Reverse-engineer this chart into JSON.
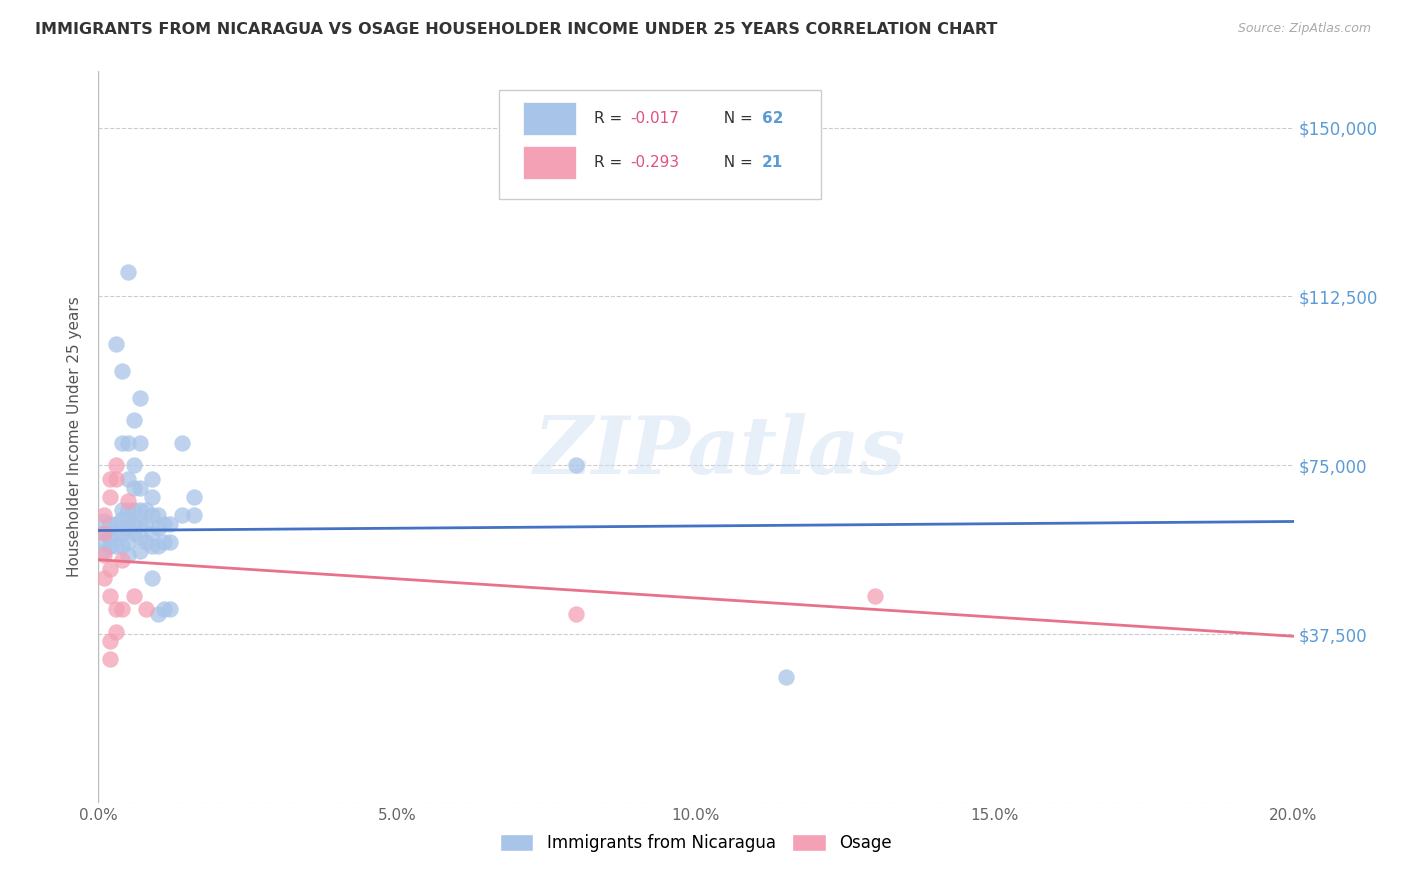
{
  "title": "IMMIGRANTS FROM NICARAGUA VS OSAGE HOUSEHOLDER INCOME UNDER 25 YEARS CORRELATION CHART",
  "source": "Source: ZipAtlas.com",
  "ylabel": "Householder Income Under 25 years",
  "xlim": [
    0.0,
    0.2
  ],
  "ylim": [
    0,
    162500
  ],
  "yticks": [
    0,
    37500,
    75000,
    112500,
    150000
  ],
  "ytick_labels": [
    "",
    "$37,500",
    "$75,000",
    "$112,500",
    "$150,000"
  ],
  "xticks": [
    0.0,
    0.05,
    0.1,
    0.15,
    0.2
  ],
  "xtick_labels": [
    "0.0%",
    "5.0%",
    "10.0%",
    "15.0%",
    "20.0%"
  ],
  "color_blue": "#a8c4e8",
  "color_pink": "#f4a0b5",
  "color_line_blue": "#4472c4",
  "color_line_pink": "#e8728a",
  "color_axis_labels": "#5b9bd5",
  "watermark": "ZIPatlas",
  "blue_line_x": [
    0.0,
    0.2
  ],
  "blue_line_y": [
    60500,
    62500
  ],
  "pink_line_x": [
    0.0,
    0.2
  ],
  "pink_line_y": [
    54000,
    37000
  ],
  "blue_scatter": [
    [
      0.001,
      62500
    ],
    [
      0.001,
      60000
    ],
    [
      0.001,
      58000
    ],
    [
      0.001,
      56000
    ],
    [
      0.002,
      62000
    ],
    [
      0.002,
      59000
    ],
    [
      0.002,
      57000
    ],
    [
      0.003,
      102000
    ],
    [
      0.003,
      62000
    ],
    [
      0.003,
      60000
    ],
    [
      0.003,
      57000
    ],
    [
      0.004,
      96000
    ],
    [
      0.004,
      80000
    ],
    [
      0.004,
      65000
    ],
    [
      0.004,
      63000
    ],
    [
      0.004,
      60000
    ],
    [
      0.004,
      57000
    ],
    [
      0.005,
      118000
    ],
    [
      0.005,
      80000
    ],
    [
      0.005,
      72000
    ],
    [
      0.005,
      65000
    ],
    [
      0.005,
      63000
    ],
    [
      0.005,
      61000
    ],
    [
      0.005,
      58000
    ],
    [
      0.005,
      55000
    ],
    [
      0.006,
      85000
    ],
    [
      0.006,
      75000
    ],
    [
      0.006,
      70000
    ],
    [
      0.006,
      65000
    ],
    [
      0.006,
      62000
    ],
    [
      0.006,
      60000
    ],
    [
      0.007,
      90000
    ],
    [
      0.007,
      80000
    ],
    [
      0.007,
      70000
    ],
    [
      0.007,
      65000
    ],
    [
      0.007,
      62000
    ],
    [
      0.007,
      59000
    ],
    [
      0.007,
      56000
    ],
    [
      0.008,
      65000
    ],
    [
      0.008,
      62000
    ],
    [
      0.008,
      58000
    ],
    [
      0.009,
      72000
    ],
    [
      0.009,
      68000
    ],
    [
      0.009,
      64000
    ],
    [
      0.009,
      60000
    ],
    [
      0.009,
      57000
    ],
    [
      0.009,
      50000
    ],
    [
      0.01,
      64000
    ],
    [
      0.01,
      61000
    ],
    [
      0.01,
      57000
    ],
    [
      0.01,
      42000
    ],
    [
      0.011,
      62000
    ],
    [
      0.011,
      58000
    ],
    [
      0.011,
      43000
    ],
    [
      0.012,
      62000
    ],
    [
      0.012,
      58000
    ],
    [
      0.012,
      43000
    ],
    [
      0.014,
      80000
    ],
    [
      0.014,
      64000
    ],
    [
      0.016,
      68000
    ],
    [
      0.016,
      64000
    ],
    [
      0.08,
      75000
    ],
    [
      0.115,
      28000
    ]
  ],
  "pink_scatter": [
    [
      0.001,
      64000
    ],
    [
      0.001,
      60000
    ],
    [
      0.001,
      55000
    ],
    [
      0.001,
      50000
    ],
    [
      0.002,
      72000
    ],
    [
      0.002,
      68000
    ],
    [
      0.002,
      52000
    ],
    [
      0.002,
      46000
    ],
    [
      0.002,
      36000
    ],
    [
      0.002,
      32000
    ],
    [
      0.003,
      75000
    ],
    [
      0.003,
      72000
    ],
    [
      0.003,
      43000
    ],
    [
      0.003,
      38000
    ],
    [
      0.004,
      54000
    ],
    [
      0.004,
      43000
    ],
    [
      0.005,
      67000
    ],
    [
      0.006,
      46000
    ],
    [
      0.008,
      43000
    ],
    [
      0.13,
      46000
    ],
    [
      0.08,
      42000
    ]
  ]
}
